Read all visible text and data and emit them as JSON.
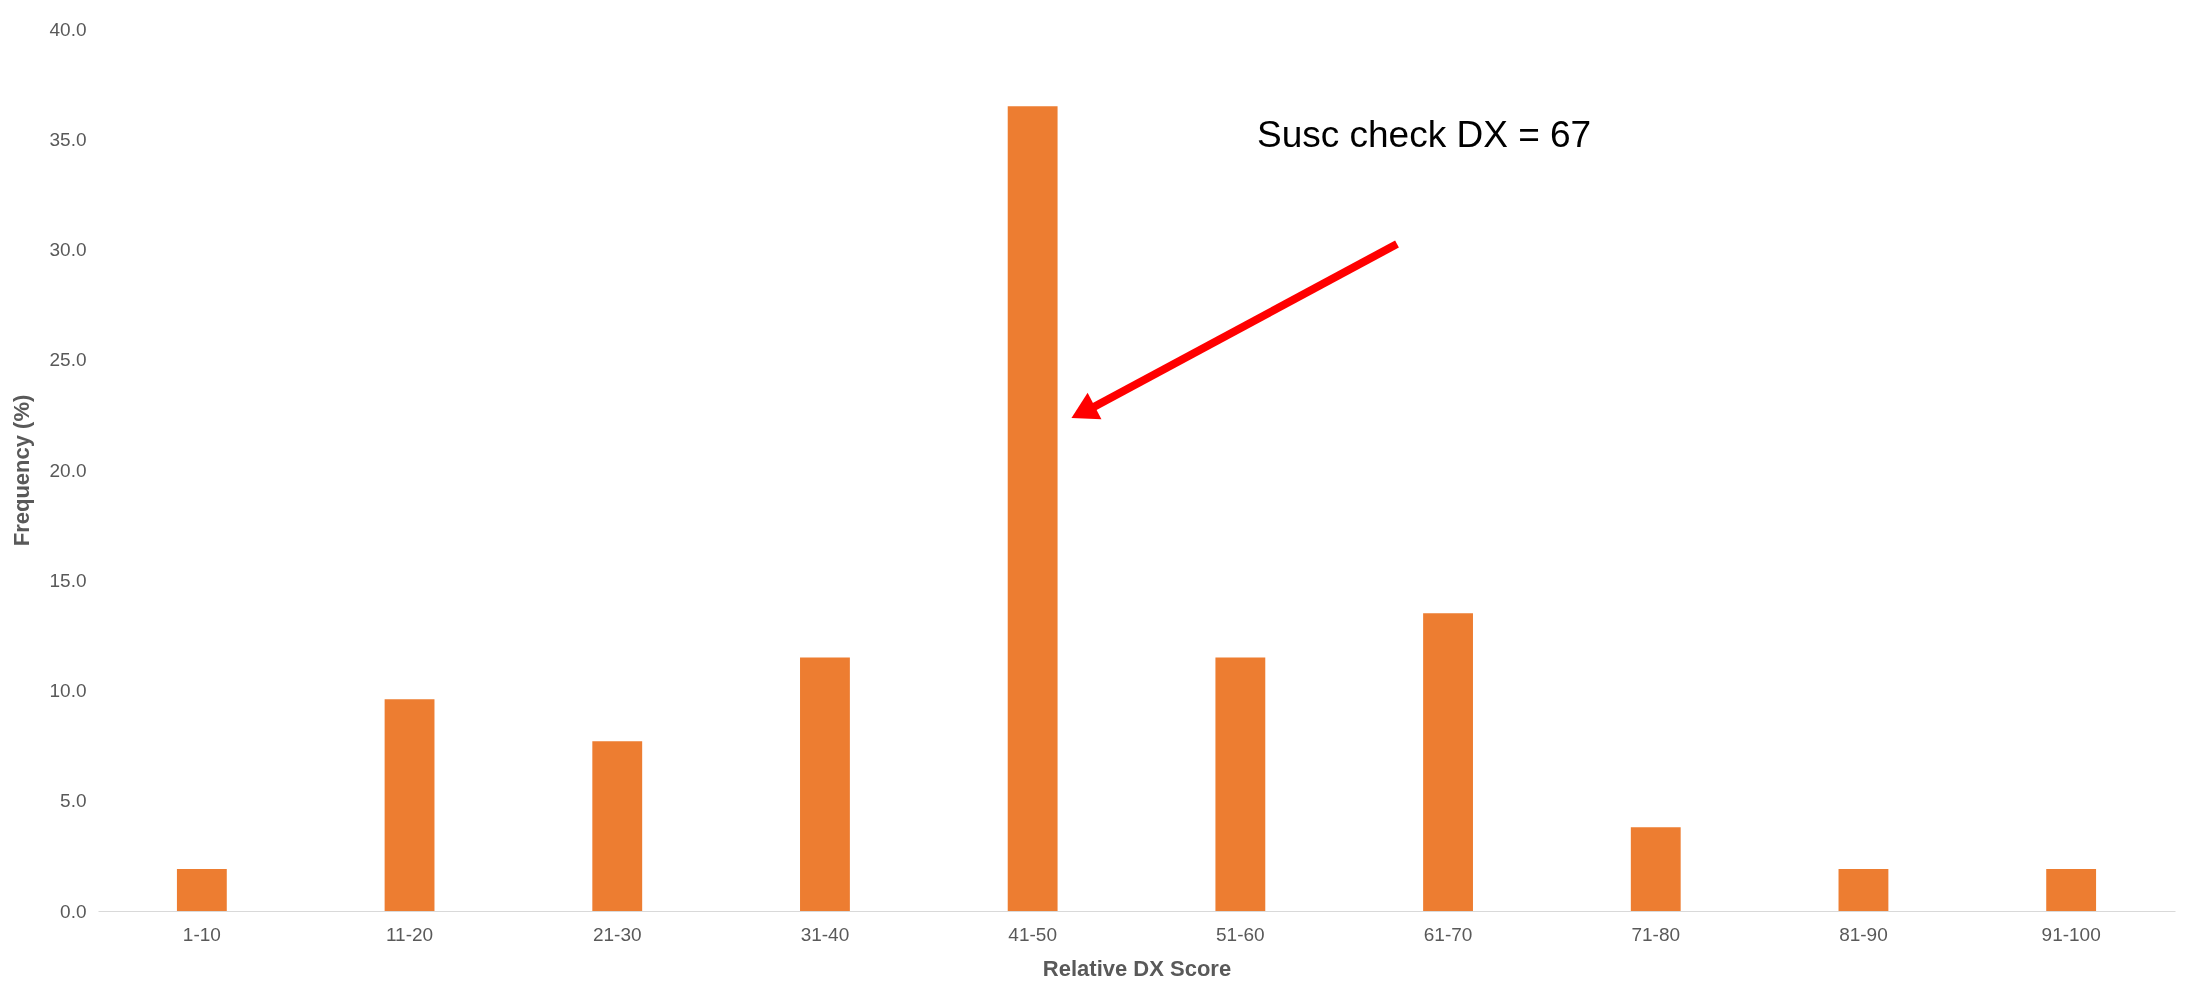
{
  "chart_data": {
    "type": "bar",
    "xlabel": "Relative DX Score",
    "ylabel": "Frequency (%)",
    "categories": [
      "1-10",
      "11-20",
      "21-30",
      "31-40",
      "41-50",
      "51-60",
      "61-70",
      "71-80",
      "81-90",
      "91-100"
    ],
    "values": [
      1.9,
      9.6,
      7.7,
      11.5,
      36.5,
      11.5,
      13.5,
      3.8,
      1.9,
      1.9
    ],
    "color": "#ed7d31",
    "ylim": [
      0,
      40
    ],
    "yticks": [
      {
        "value": 0,
        "label": "0.0"
      },
      {
        "value": 5,
        "label": "5.0"
      },
      {
        "value": 10,
        "label": "10.0"
      },
      {
        "value": 15,
        "label": "15.0"
      },
      {
        "value": 20,
        "label": "20.0"
      },
      {
        "value": 25,
        "label": "25.0"
      },
      {
        "value": 30,
        "label": "30.0"
      },
      {
        "value": 35,
        "label": "35.0"
      },
      {
        "value": 40,
        "label": "40.0"
      }
    ],
    "grid": false,
    "annotations": [
      "Susc check DX = 67"
    ]
  }
}
